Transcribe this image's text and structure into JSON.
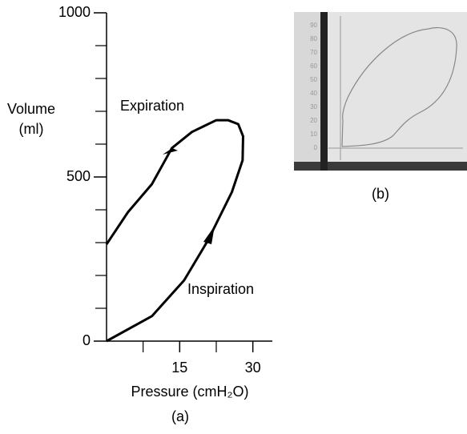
{
  "chart_data": [
    {
      "type": "line",
      "caption": "(a)",
      "xlabel": "Pressure (cmH₂O)",
      "ylabel": "Volume (ml)",
      "annotations": [
        "Expiration",
        "Inspiration"
      ],
      "x": [
        0,
        9.3,
        15.9,
        20.8,
        25.7,
        27.9,
        28.0,
        27.0,
        24.9,
        22.5,
        17.5,
        13.4,
        9.3,
        4.4,
        0
      ],
      "values": [
        0,
        76,
        185,
        307,
        454,
        551,
        624,
        661,
        673,
        673,
        637,
        588,
        478,
        393,
        295
      ],
      "color": "#000000",
      "xlim": [
        0,
        34
      ],
      "ylim": [
        0,
        1000
      ],
      "xticks": [
        15,
        30
      ],
      "minor_xticks": [
        7.5,
        22.5
      ],
      "yticks": [
        0,
        500,
        1000
      ],
      "minor_yticks": [
        100,
        200,
        300,
        400,
        600,
        700,
        800,
        900
      ]
    },
    {
      "type": "photo",
      "caption": "(b)",
      "ylim": [
        -5,
        95
      ],
      "yticks": [
        0,
        10,
        20,
        30,
        40,
        50,
        60,
        70,
        80,
        90
      ]
    }
  ]
}
